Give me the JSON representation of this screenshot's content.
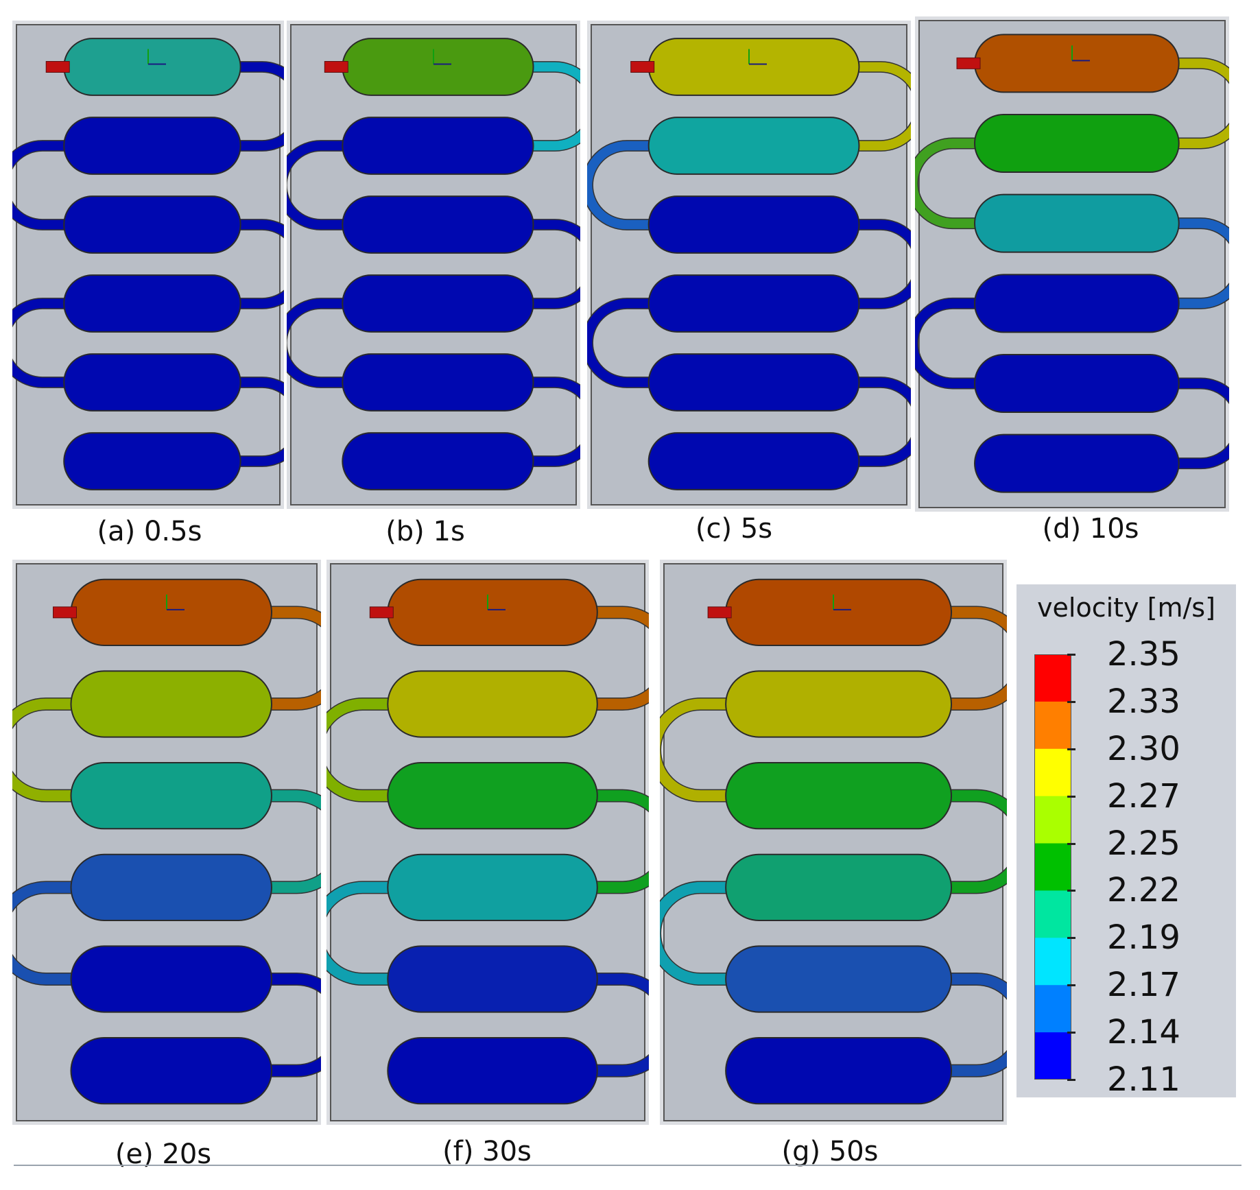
{
  "legend": {
    "title": "velocity [m/s]",
    "ticks": [
      "2.35",
      "2.33",
      "2.30",
      "2.27",
      "2.25",
      "2.22",
      "2.19",
      "2.17",
      "2.14",
      "2.11"
    ],
    "band_colors": [
      "#ff0000",
      "#ff7f00",
      "#ffff00",
      "#aaff00",
      "#00c000",
      "#00e6a0",
      "#00e5ff",
      "#0080ff",
      "#0000ff"
    ]
  },
  "panels": [
    {
      "id": "a",
      "caption": "(a) 0.5s",
      "chamber_colors": [
        "#1ea090",
        "#0008b0",
        "#0008b0",
        "#0008b0",
        "#0008b0",
        "#0008b0"
      ],
      "link_colors": [
        "#0008b0",
        "#0008b0",
        "#0008b0",
        "#0008b0",
        "#0008b0"
      ]
    },
    {
      "id": "b",
      "caption": "(b) 1s",
      "chamber_colors": [
        "#4a9a10",
        "#0008b0",
        "#0008b0",
        "#0008b0",
        "#0008b0",
        "#0008b0"
      ],
      "link_colors": [
        "#10b0c0",
        "#0008b0",
        "#0008b0",
        "#0008b0",
        "#0008b0"
      ]
    },
    {
      "id": "c",
      "caption": "(c) 5s",
      "chamber_colors": [
        "#b4b400",
        "#10a5a0",
        "#0008b0",
        "#0008b0",
        "#0008b0",
        "#0008b0"
      ],
      "link_colors": [
        "#b4b400",
        "#1a60c0",
        "#0008b0",
        "#0008b0",
        "#0008b0"
      ]
    },
    {
      "id": "d",
      "caption": "(d) 10s",
      "chamber_colors": [
        "#b05000",
        "#10a010",
        "#109ca0",
        "#0008b0",
        "#0008b0",
        "#0008b0"
      ],
      "link_colors": [
        "#b4b400",
        "#40a020",
        "#1a60c0",
        "#0008b0",
        "#0008b0"
      ]
    },
    {
      "id": "e",
      "caption": "(e) 20s",
      "chamber_colors": [
        "#b04c00",
        "#8cb000",
        "#10a088",
        "#1a50b0",
        "#0008b0",
        "#0008b0"
      ],
      "link_colors": [
        "#b86000",
        "#90b000",
        "#10a088",
        "#1a50b0",
        "#0008b0"
      ]
    },
    {
      "id": "f",
      "caption": "(f) 30s",
      "chamber_colors": [
        "#b04c00",
        "#b0b000",
        "#10a020",
        "#10a0a0",
        "#0820b0",
        "#0008b0"
      ],
      "link_colors": [
        "#b86000",
        "#80b000",
        "#10a020",
        "#10a0b0",
        "#0820b0"
      ]
    },
    {
      "id": "g",
      "caption": "(g) 50s",
      "chamber_colors": [
        "#b04800",
        "#b0b000",
        "#10a020",
        "#10a070",
        "#1a50b0",
        "#0008b0"
      ],
      "link_colors": [
        "#b86000",
        "#b0b000",
        "#10a020",
        "#10a0b0",
        "#1a50b0"
      ]
    }
  ]
}
